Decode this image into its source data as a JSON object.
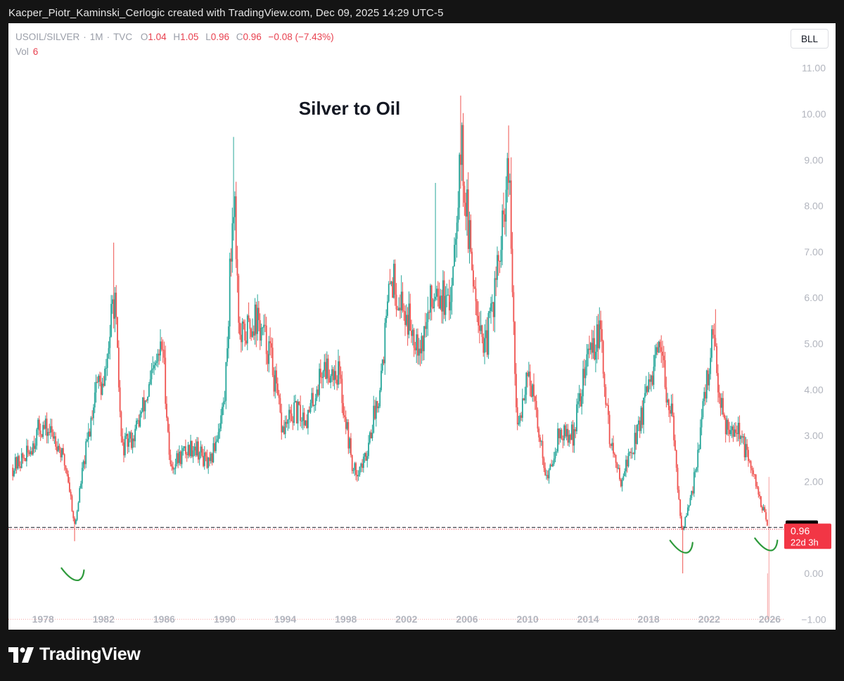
{
  "header": {
    "caption": "Kacper_Piotr_Kaminski_Cerlogic created with TradingView.com, Dec 09, 2025 14:29 UTC-5"
  },
  "legend": {
    "symbol": "USOIL/SILVER",
    "interval": "1M",
    "source": "TVC",
    "o_label": "O",
    "o_value": "1.04",
    "h_label": "H",
    "h_value": "1.05",
    "l_label": "L",
    "l_value": "0.96",
    "c_label": "C",
    "c_value": "0.96",
    "change": "−0.08 (−7.43%)",
    "vol_label": "Vol",
    "vol_value": "6"
  },
  "toolbar": {
    "button_label": "BLL"
  },
  "footer": {
    "brand": "TradingView"
  },
  "colors": {
    "up": "#26a69a",
    "down": "#ef5350",
    "background": "#ffffff",
    "frame": "#141414",
    "axis_text": "#b2b5be",
    "annotation": "#2e9a3c",
    "price_tag": "#f23645"
  },
  "chart_data": {
    "type": "candlestick",
    "title": "Silver to Oil",
    "xlabel": "",
    "ylabel": "",
    "y_ticks": [
      "11.00",
      "10.00",
      "9.00",
      "8.00",
      "7.00",
      "6.00",
      "5.00",
      "4.00",
      "3.00",
      "2.00",
      "0.00",
      "−1.00"
    ],
    "x_ticks": [
      "1978",
      "1982",
      "1986",
      "1990",
      "1994",
      "1998",
      "2002",
      "2006",
      "2010",
      "2014",
      "2018",
      "2022",
      "2026"
    ],
    "ylim": [
      -1,
      11.3
    ],
    "xlim": [
      1975.9,
      2027.0
    ],
    "grid": false,
    "reference_line": {
      "value": 1.0,
      "label": "1.00",
      "style": "dashed"
    },
    "last_price": {
      "value": 0.96,
      "label": "0.96",
      "countdown": "22d 3h"
    },
    "key_points": [
      {
        "x": 1976.0,
        "close": 2.3
      },
      {
        "x": 1977.0,
        "close": 2.6
      },
      {
        "x": 1977.8,
        "close": 3.2
      },
      {
        "x": 1978.8,
        "close": 3.0
      },
      {
        "x": 1979.6,
        "close": 2.2
      },
      {
        "x": 1980.1,
        "close": 1.0
      },
      {
        "x": 1980.5,
        "close": 2.0
      },
      {
        "x": 1981.1,
        "close": 3.2
      },
      {
        "x": 1981.5,
        "close": 4.2
      },
      {
        "x": 1982.0,
        "close": 4.0
      },
      {
        "x": 1982.7,
        "close": 6.1
      },
      {
        "x": 1983.2,
        "close": 2.7
      },
      {
        "x": 1984.0,
        "close": 3.0
      },
      {
        "x": 1985.0,
        "close": 4.0
      },
      {
        "x": 1985.9,
        "close": 5.0
      },
      {
        "x": 1986.4,
        "close": 2.3
      },
      {
        "x": 1987.2,
        "close": 2.6
      },
      {
        "x": 1988.0,
        "close": 2.8
      },
      {
        "x": 1989.0,
        "close": 2.3
      },
      {
        "x": 1990.0,
        "close": 3.8
      },
      {
        "x": 1990.6,
        "close": 8.5
      },
      {
        "x": 1991.0,
        "close": 5.0
      },
      {
        "x": 1992.0,
        "close": 5.6
      },
      {
        "x": 1993.0,
        "close": 4.8
      },
      {
        "x": 1993.8,
        "close": 3.1
      },
      {
        "x": 1994.6,
        "close": 3.5
      },
      {
        "x": 1995.5,
        "close": 3.4
      },
      {
        "x": 1996.5,
        "close": 4.5
      },
      {
        "x": 1997.5,
        "close": 4.4
      },
      {
        "x": 1998.5,
        "close": 2.2
      },
      {
        "x": 1999.2,
        "close": 2.4
      },
      {
        "x": 2000.2,
        "close": 4.0
      },
      {
        "x": 2001.0,
        "close": 6.5
      },
      {
        "x": 2002.0,
        "close": 5.6
      },
      {
        "x": 2003.0,
        "close": 5.0
      },
      {
        "x": 2004.0,
        "close": 6.4
      },
      {
        "x": 2004.8,
        "close": 5.6
      },
      {
        "x": 2005.6,
        "close": 9.4
      },
      {
        "x": 2006.2,
        "close": 7.0
      },
      {
        "x": 2007.2,
        "close": 4.8
      },
      {
        "x": 2008.3,
        "close": 7.2
      },
      {
        "x": 2008.75,
        "close": 8.8
      },
      {
        "x": 2009.3,
        "close": 3.0
      },
      {
        "x": 2010.0,
        "close": 4.5
      },
      {
        "x": 2010.8,
        "close": 3.0
      },
      {
        "x": 2011.3,
        "close": 2.0
      },
      {
        "x": 2012.0,
        "close": 3.0
      },
      {
        "x": 2013.0,
        "close": 3.0
      },
      {
        "x": 2014.0,
        "close": 4.8
      },
      {
        "x": 2014.8,
        "close": 5.2
      },
      {
        "x": 2015.4,
        "close": 3.0
      },
      {
        "x": 2016.1,
        "close": 2.0
      },
      {
        "x": 2017.0,
        "close": 2.8
      },
      {
        "x": 2018.0,
        "close": 4.0
      },
      {
        "x": 2018.7,
        "close": 4.8
      },
      {
        "x": 2019.5,
        "close": 3.5
      },
      {
        "x": 2020.2,
        "close": 0.9
      },
      {
        "x": 2020.8,
        "close": 1.6
      },
      {
        "x": 2021.5,
        "close": 3.3
      },
      {
        "x": 2022.2,
        "close": 5.1
      },
      {
        "x": 2023.0,
        "close": 3.3
      },
      {
        "x": 2024.0,
        "close": 3.1
      },
      {
        "x": 2024.6,
        "close": 2.4
      },
      {
        "x": 2025.3,
        "close": 1.7
      },
      {
        "x": 2025.9,
        "close": 0.96
      }
    ],
    "peaks": [
      {
        "x": 1982.7,
        "high": 7.2
      },
      {
        "x": 1990.6,
        "high": 9.5
      },
      {
        "x": 2003.9,
        "high": 8.5
      },
      {
        "x": 2005.55,
        "high": 10.4
      },
      {
        "x": 2008.75,
        "high": 9.75
      },
      {
        "x": 2022.4,
        "high": 5.75
      }
    ],
    "troughs": [
      {
        "x": 1980.1,
        "low": 0.7
      },
      {
        "x": 2020.25,
        "low": 0.0
      }
    ],
    "volume_spike": {
      "x": 2025.9,
      "low": -1.0,
      "high": 2.1
    },
    "annotations": [
      {
        "type": "smile",
        "x": 1980.1,
        "y": -0.1
      },
      {
        "type": "smile",
        "x": 2020.3,
        "y": 0.5
      },
      {
        "type": "smile",
        "x": 2025.9,
        "y": 0.55
      }
    ]
  }
}
